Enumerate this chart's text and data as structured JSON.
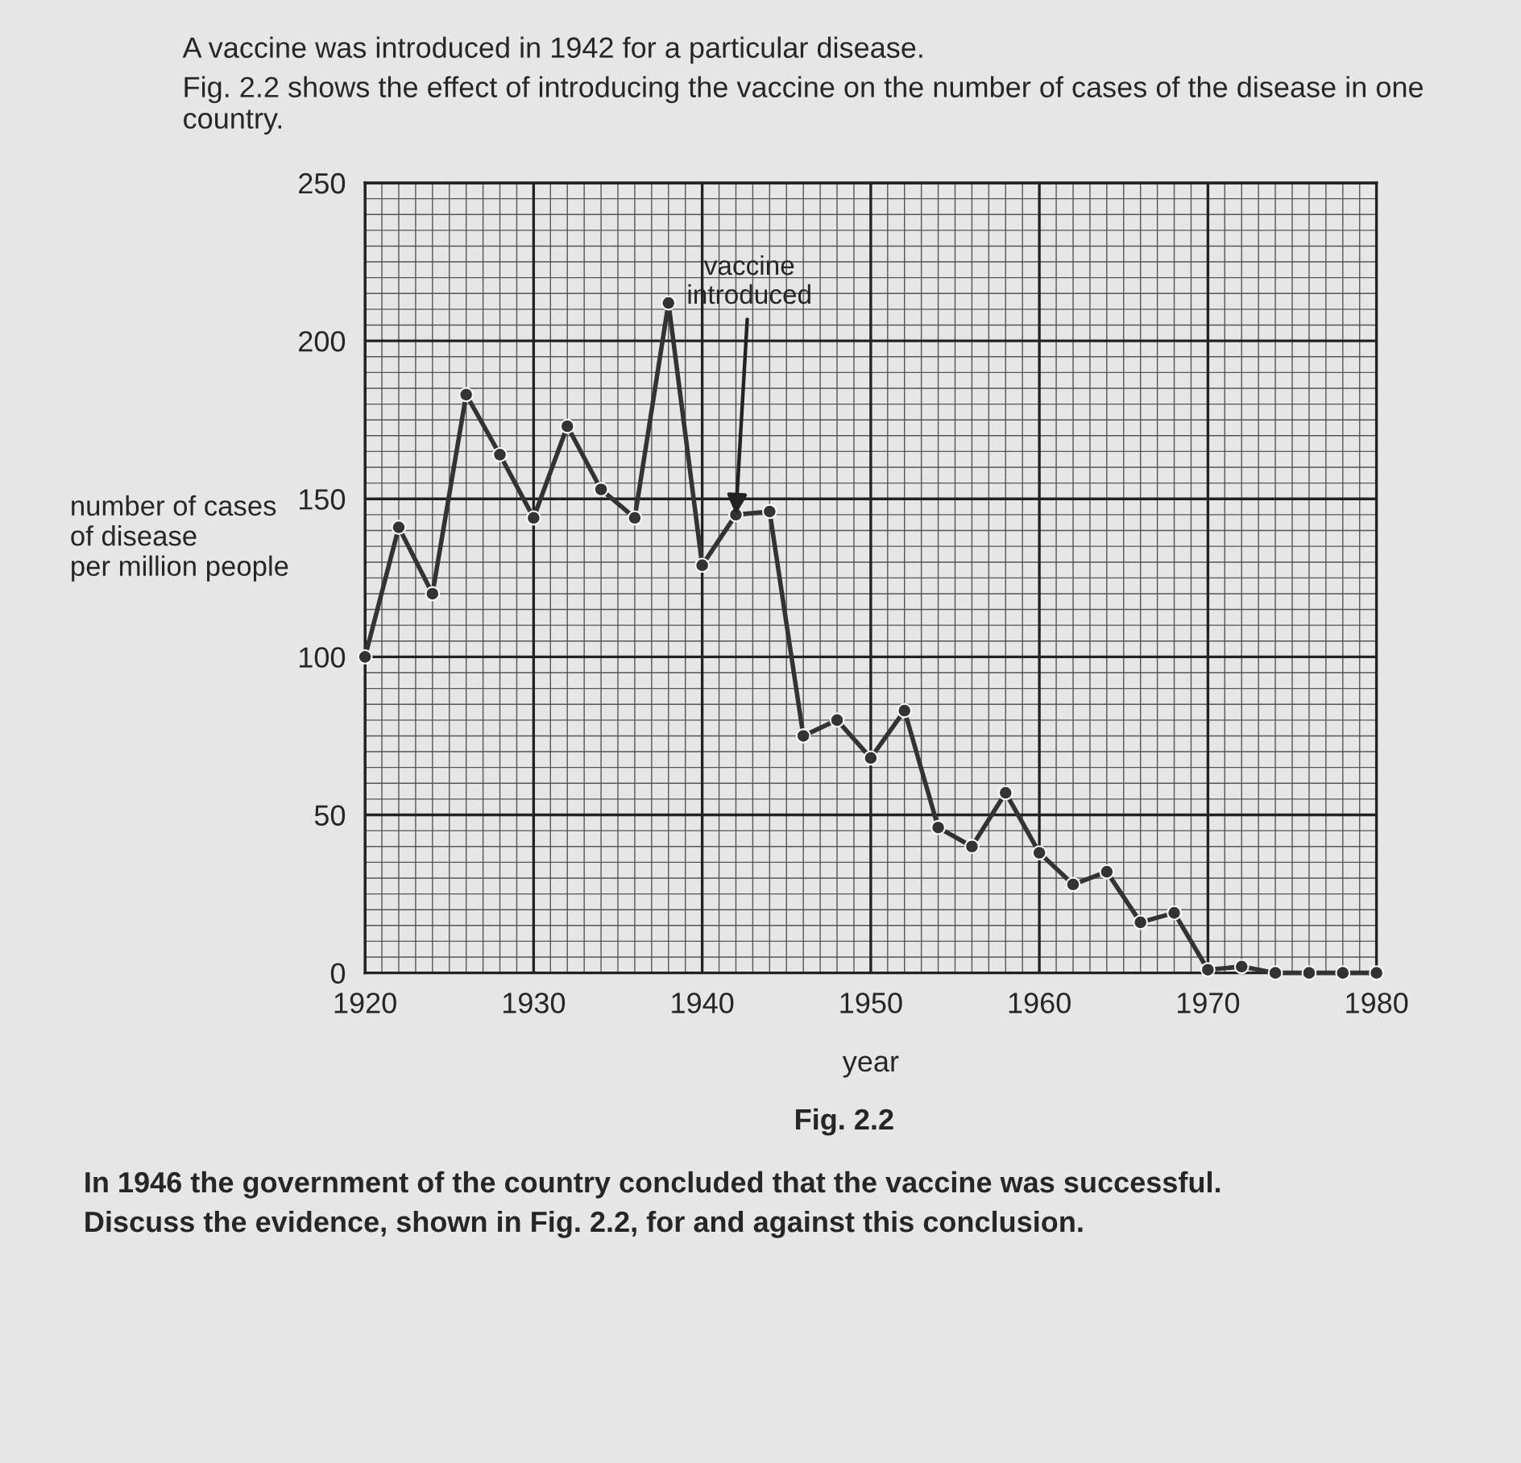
{
  "chart_data": {
    "type": "line",
    "title": "A vaccine was introduced in 1942 for a particular disease.",
    "subtitle": "Fig. 2.2 shows the effect of introducing the vaccine on the number of cases of the disease in one country.",
    "xlabel": "year",
    "ylabel": "number of cases\nof disease\nper million people",
    "x": [
      1920,
      1922,
      1924,
      1926,
      1928,
      1930,
      1932,
      1934,
      1936,
      1938,
      1940,
      1942,
      1944,
      1946,
      1948,
      1950,
      1952,
      1954,
      1956,
      1958,
      1960,
      1962,
      1964,
      1966,
      1968,
      1970,
      1972,
      1974,
      1976,
      1978,
      1980
    ],
    "series": [
      {
        "color": "#333333",
        "values": [
          100,
          141,
          120,
          183,
          164,
          144,
          173,
          153,
          144,
          212,
          129,
          145,
          146,
          75,
          80,
          68,
          83,
          46,
          40,
          57,
          38,
          28,
          32,
          16,
          19,
          1,
          2,
          0,
          0,
          0,
          0
        ]
      }
    ],
    "xlim": [
      1920,
      1980
    ],
    "xticks": [
      1920,
      1930,
      1940,
      1950,
      1960,
      1970,
      1980
    ],
    "ylim": [
      0,
      250
    ],
    "yticks": [
      0,
      50,
      100,
      150,
      200,
      250
    ],
    "grid": true,
    "marker": "circle",
    "line_style": "solid",
    "annotations": [
      {
        "text": "vaccine\nintroduced",
        "x": 1942,
        "y": 145
      },
      "Fig. 2.2",
      "In 1946 the government of the country concluded that the vaccine was successful.",
      "Discuss the evidence, shown in Fig. 2.2, for and against this conclusion."
    ]
  }
}
